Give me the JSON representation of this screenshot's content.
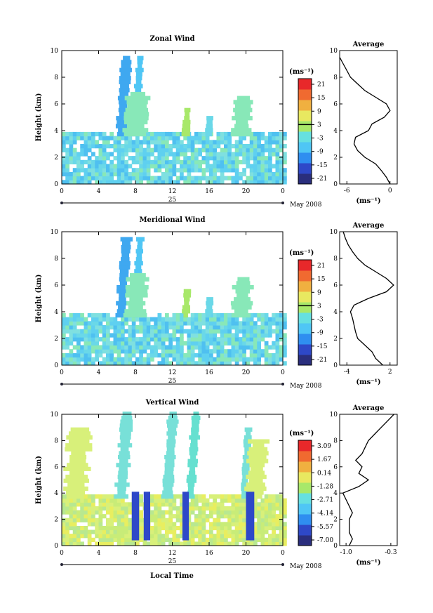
{
  "figure": {
    "date_label": "May 2008",
    "day_label": "25",
    "xlabel": "Local Time"
  },
  "colors": {
    "scale": [
      "#2a2e7d",
      "#2e48c8",
      "#2f8ef0",
      "#4fc6f5",
      "#66e0e0",
      "#a8e86a",
      "#e8e860",
      "#f0b040",
      "#f06a30",
      "#e8282a"
    ]
  },
  "chart_data": [
    {
      "type": "heatmap",
      "name": "zonal",
      "title": "Zonal Wind",
      "ylabel": "Height (km)",
      "xlim": [
        0,
        24
      ],
      "ylim": [
        0,
        10
      ],
      "xticks": [
        "0",
        "4",
        "8",
        "12",
        "16",
        "20",
        "0"
      ],
      "yticks": [
        "0",
        "2",
        "4",
        "6",
        "8",
        "10"
      ],
      "colorbar": {
        "unit": "(ms⁻¹)",
        "ticks": [
          "21",
          "15",
          "9",
          "3",
          "-3",
          "-9",
          "-15",
          "-21"
        ],
        "zero_line": 3
      },
      "profile": {
        "title": "Average",
        "xlabel": "(ms⁻¹)",
        "xticks": [
          "-6",
          "0"
        ],
        "xlim": [
          -7,
          1
        ],
        "heights": [
          0,
          0.5,
          1,
          1.5,
          2,
          2.5,
          3,
          3.5,
          4,
          4.5,
          5,
          5.5,
          6,
          6.5,
          7,
          7.5,
          8,
          8.5,
          9,
          9.5
        ],
        "values": [
          0,
          -0.5,
          -1.2,
          -2,
          -3.5,
          -4.5,
          -5,
          -4.8,
          -3,
          -2.5,
          -0.8,
          0,
          -0.5,
          -2,
          -3.5,
          -4.5,
          -5.5,
          -6,
          -6.5,
          -7
        ]
      }
    },
    {
      "type": "heatmap",
      "name": "meridional",
      "title": "Meridional Wind",
      "ylabel": "Height (km)",
      "xlim": [
        0,
        24
      ],
      "ylim": [
        0,
        10
      ],
      "xticks": [
        "0",
        "4",
        "8",
        "12",
        "16",
        "20",
        "0"
      ],
      "yticks": [
        "0",
        "2",
        "4",
        "6",
        "8",
        "10"
      ],
      "colorbar": {
        "unit": "(ms⁻¹)",
        "ticks": [
          "21",
          "15",
          "9",
          "3",
          "-3",
          "-9",
          "-15",
          "-21"
        ],
        "zero_line": 3
      },
      "profile": {
        "title": "Average",
        "xlabel": "(ms⁻¹)",
        "xticks": [
          "-4",
          "2"
        ],
        "xlim": [
          -5,
          3
        ],
        "heights": [
          0,
          0.5,
          1,
          1.5,
          2,
          2.5,
          3,
          3.5,
          4,
          4.5,
          5,
          5.5,
          6,
          6.5,
          7,
          7.5,
          8,
          8.5,
          9,
          9.5,
          10
        ],
        "values": [
          1,
          0,
          -0.5,
          -1.5,
          -2.5,
          -2.8,
          -3,
          -3.2,
          -3.5,
          -3,
          -1,
          1.5,
          2.5,
          1.5,
          0,
          -1.5,
          -2.5,
          -3.2,
          -3.8,
          -4.2,
          -4.5
        ]
      }
    },
    {
      "type": "heatmap",
      "name": "vertical",
      "title": "Vertical Wind",
      "ylabel": "Height (km)",
      "xlim": [
        0,
        24
      ],
      "ylim": [
        0,
        10
      ],
      "xticks": [
        "0",
        "4",
        "8",
        "12",
        "16",
        "20",
        "0"
      ],
      "yticks": [
        "0",
        "2",
        "4",
        "6",
        "8",
        "10"
      ],
      "colorbar": {
        "unit": "(ms⁻¹)",
        "ticks": [
          "3.09",
          "1.67",
          "0.14",
          "-1.28",
          "-2.71",
          "-4.14",
          "-5.57",
          "-7.00"
        ]
      },
      "profile": {
        "title": "Average",
        "xlabel": "(ms⁻¹)",
        "xticks": [
          "-1.0",
          "-0.3"
        ],
        "xlim": [
          -1.1,
          -0.2
        ],
        "heights": [
          0,
          0.5,
          1,
          1.5,
          2,
          2.5,
          3,
          3.5,
          4,
          4.5,
          5,
          5.5,
          6,
          6.5,
          7,
          7.5,
          8,
          8.5,
          9,
          9.5,
          10
        ],
        "values": [
          -0.95,
          -0.9,
          -0.95,
          -0.95,
          -0.95,
          -0.9,
          -0.95,
          -1.0,
          -1.05,
          -0.8,
          -0.65,
          -0.8,
          -0.75,
          -0.85,
          -0.75,
          -0.7,
          -0.65,
          -0.55,
          -0.45,
          -0.35,
          -0.25
        ]
      }
    }
  ]
}
